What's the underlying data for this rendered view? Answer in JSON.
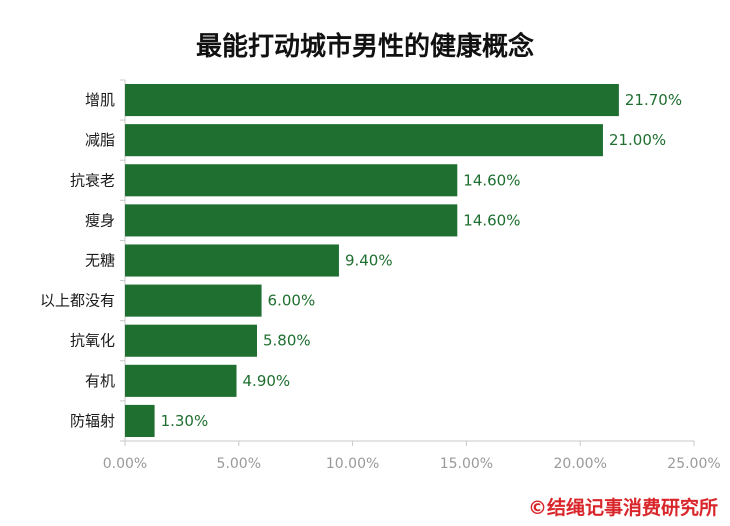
{
  "chart_data": {
    "type": "bar",
    "orientation": "horizontal",
    "title": "最能打动城市男性的健康概念",
    "categories": [
      "增肌",
      "减脂",
      "抗衰老",
      "瘦身",
      "无糖",
      "以上都没有",
      "抗氧化",
      "有机",
      "防辐射"
    ],
    "values": [
      21.7,
      21.0,
      14.6,
      14.6,
      9.4,
      6.0,
      5.8,
      4.9,
      1.3
    ],
    "value_labels": [
      "21.70%",
      "21.00%",
      "14.60%",
      "14.60%",
      "9.40%",
      "6.00%",
      "5.80%",
      "4.90%",
      "1.30%"
    ],
    "xlim": [
      0,
      25
    ],
    "xticks": [
      "0.00%",
      "5.00%",
      "10.00%",
      "15.00%",
      "20.00%",
      "25.00%"
    ],
    "grid": false,
    "legend": "none"
  },
  "footer": {
    "copyright": "©结绳记事消费研究所"
  },
  "colors": {
    "bar": "#1f6f30",
    "value_text": "#1f6f30",
    "copyright": "#d9262b"
  }
}
